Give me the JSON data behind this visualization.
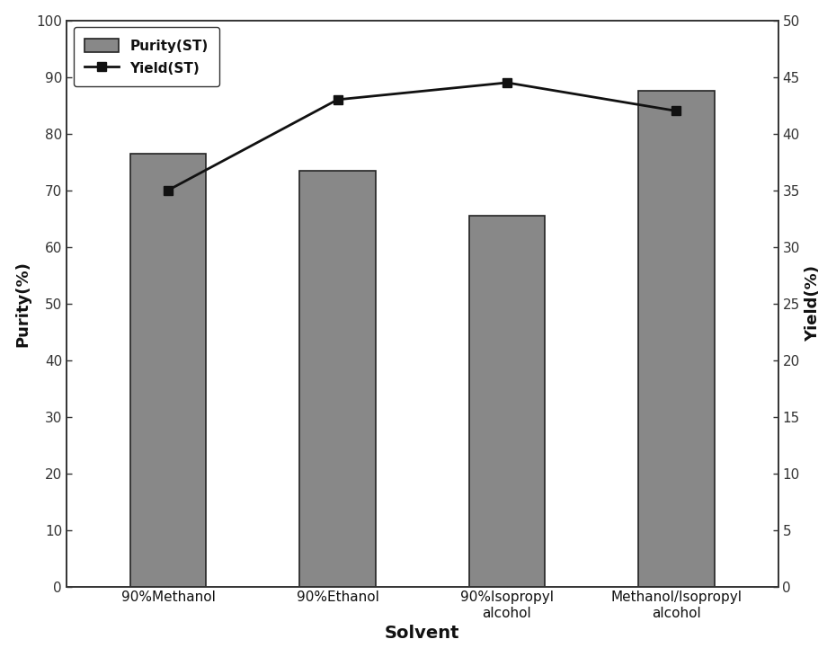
{
  "categories": [
    "90%Methanol",
    "90%Ethanol",
    "90%Isopropyl\nalcohol",
    "Methanol/Isopropyl\nalcohol"
  ],
  "purity_values": [
    76.5,
    73.5,
    65.5,
    87.5
  ],
  "yield_values": [
    35.0,
    43.0,
    44.5,
    42.0
  ],
  "bar_color": "#888888",
  "bar_edge_color": "#222222",
  "line_color": "#111111",
  "marker_color": "#111111",
  "left_ylim": [
    0,
    100
  ],
  "right_ylim": [
    0,
    50
  ],
  "left_yticks": [
    0,
    10,
    20,
    30,
    40,
    50,
    60,
    70,
    80,
    90,
    100
  ],
  "right_yticks": [
    0,
    5,
    10,
    15,
    20,
    25,
    30,
    35,
    40,
    45,
    50
  ],
  "xlabel": "Solvent",
  "left_ylabel": "Purity(%)",
  "right_ylabel": "Yield(%)",
  "legend_purity": "Purity(ST)",
  "legend_yield": "Yield(ST)",
  "bar_width": 0.45,
  "background_color": "#ffffff",
  "spine_color": "#333333",
  "tick_color": "#333333",
  "label_fontsize": 13,
  "tick_fontsize": 11,
  "xlabel_fontsize": 14
}
